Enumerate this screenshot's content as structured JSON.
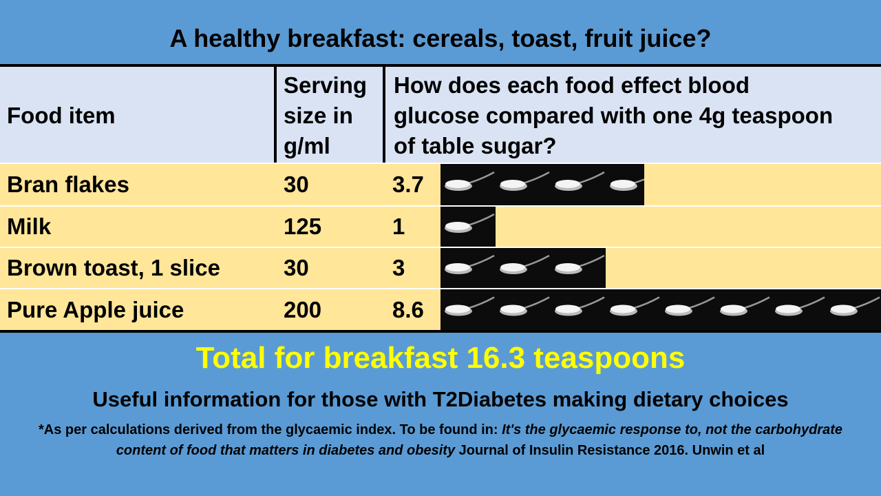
{
  "header": {
    "title": "A healthy breakfast: cereals, toast, fruit juice?"
  },
  "table": {
    "columns": [
      "Food item",
      "Serving size in g/ml",
      "How does each food effect blood glucose compared with one 4g teaspoon of table sugar?"
    ],
    "rows": [
      [
        "Bran flakes",
        30,
        3.7
      ],
      [
        "Milk",
        125,
        1
      ],
      [
        "Brown toast, 1 slice",
        30,
        3
      ],
      [
        "Pure Apple juice",
        200,
        8.6
      ]
    ]
  },
  "footer": {
    "total": "Total for breakfast  16.3 teaspoons",
    "subtitle": "Useful information for those with T2Diabetes making dietary choices",
    "note_start": "*As per calculations derived from the glycaemic index. To be found in: ",
    "note_title": "It's the glycaemic response to, not the carbohydrate content of food that matters in diabetes and obesity",
    "note_end": "  Journal of Insulin Resistance 2016. Unwin et al"
  }
}
